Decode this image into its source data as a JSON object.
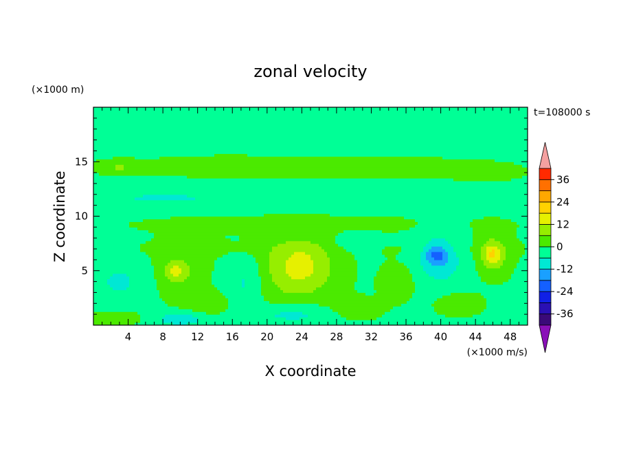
{
  "chart_data": {
    "type": "heatmap",
    "title": "zonal velocity",
    "xlabel": "X coordinate",
    "ylabel": "Z coordinate",
    "x_unit": "(×1000 m/s)",
    "y_unit": "(×1000 m)",
    "time_label": "t=108000 s",
    "xlim": [
      0,
      50
    ],
    "ylim": [
      0,
      20
    ],
    "xticks": [
      "4",
      "8",
      "12",
      "16",
      "20",
      "24",
      "28",
      "32",
      "36",
      "40",
      "44",
      "48"
    ],
    "yticks": [
      "5",
      "10",
      "15"
    ],
    "colorbar": {
      "levels": [
        -42,
        -36,
        -30,
        -24,
        -18,
        -12,
        -6,
        0,
        6,
        12,
        18,
        24,
        30,
        36,
        42
      ],
      "labels": [
        "36",
        "24",
        "12",
        "0",
        "-12",
        "-24",
        "-36"
      ],
      "colors": [
        "#3a0a78",
        "#2a10b4",
        "#1020e6",
        "#1460ff",
        "#1aa0ff",
        "#00e8d4",
        "#00ff96",
        "#4bea00",
        "#96ee00",
        "#e6f000",
        "#ffd200",
        "#ffa800",
        "#ff7000",
        "#ff2a00"
      ],
      "over_color": "#f4a0a0",
      "under_color": "#8a10b8",
      "range": [
        -42,
        42
      ]
    },
    "field_blobs": [
      {
        "x": 24,
        "z": 5.5,
        "rx": 3.5,
        "rz": 2.2,
        "value": 10
      },
      {
        "x": 23,
        "z": 4.5,
        "rx": 5,
        "rz": 3.5,
        "value": 6
      },
      {
        "x": 10,
        "z": 5,
        "rx": 2.8,
        "rz": 2.5,
        "value": 6
      },
      {
        "x": 9.5,
        "z": 5,
        "rx": 1.2,
        "rz": 0.8,
        "value": 10
      },
      {
        "x": 46,
        "z": 6.5,
        "rx": 2,
        "rz": 2,
        "value": 8
      },
      {
        "x": 46,
        "z": 6.5,
        "rx": 1,
        "rz": 1,
        "value": 12
      },
      {
        "x": 35,
        "z": 4,
        "rx": 1.8,
        "rz": 1.5,
        "value": 7
      },
      {
        "x": 42,
        "z": 2,
        "rx": 2.5,
        "rz": 1,
        "value": 6
      },
      {
        "x": 13,
        "z": 2,
        "rx": 2.5,
        "rz": 1,
        "value": 6
      },
      {
        "x": 30,
        "z": 1.5,
        "rx": 3,
        "rz": 1,
        "value": 5
      },
      {
        "x": 2.5,
        "z": 0.7,
        "rx": 3,
        "rz": 0.6,
        "value": 6
      },
      {
        "x": 17.5,
        "z": 4,
        "rx": 2,
        "rz": 2.5,
        "value": -7
      },
      {
        "x": 40,
        "z": 6,
        "rx": 3,
        "rz": 2.5,
        "value": -8
      },
      {
        "x": 39.5,
        "z": 6.5,
        "rx": 1.3,
        "rz": 1,
        "value": -13
      },
      {
        "x": 3,
        "z": 4,
        "rx": 3,
        "rz": 2,
        "value": -6
      },
      {
        "x": 23,
        "z": 1,
        "rx": 5,
        "rz": 1,
        "value": -8
      },
      {
        "x": 10,
        "z": 0.6,
        "rx": 3,
        "rz": 0.7,
        "value": -9
      },
      {
        "x": 30,
        "z": 7.5,
        "rx": 3,
        "rz": 1,
        "value": -4
      },
      {
        "x": 25,
        "z": 17.5,
        "rx": 10,
        "rz": 1.5,
        "value": -2
      },
      {
        "x": 12,
        "z": 18.5,
        "rx": 8,
        "rz": 1.2,
        "value": -2
      },
      {
        "x": 40,
        "z": 18,
        "rx": 9,
        "rz": 1.5,
        "value": -2
      },
      {
        "x": 25,
        "z": 14.5,
        "rx": 26,
        "rz": 1.8,
        "value": 2
      },
      {
        "x": 25,
        "z": 9.3,
        "rx": 26,
        "rz": 1.2,
        "value": 2
      },
      {
        "x": 25,
        "z": 11.7,
        "rx": 26,
        "rz": 1.2,
        "value": -3
      },
      {
        "x": 8,
        "z": 11.7,
        "rx": 4,
        "rz": 0.3,
        "value": -7
      },
      {
        "x": 3,
        "z": 14.5,
        "rx": 2,
        "rz": 0.5,
        "value": 7
      },
      {
        "x": 45,
        "z": 14,
        "rx": 3,
        "rz": 0.6,
        "value": 5
      },
      {
        "x": 25,
        "z": 7,
        "rx": 26,
        "rz": 0.8,
        "value": 2
      }
    ],
    "grid": false,
    "legend": "colorbar-right"
  }
}
